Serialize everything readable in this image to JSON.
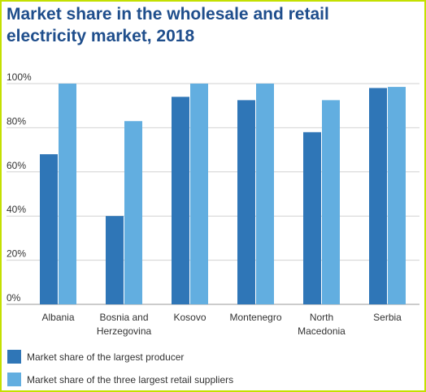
{
  "chart_data": {
    "type": "bar",
    "title": "Market share in the wholesale and retail electricity market, 2018",
    "categories": [
      [
        "Albania"
      ],
      [
        "Bosnia and",
        "Herzegovina"
      ],
      [
        "Kosovo"
      ],
      [
        "Montenegro"
      ],
      [
        "North",
        "Macedonia"
      ],
      [
        "Serbia"
      ]
    ],
    "series": [
      {
        "name": "Market share of the largest producer",
        "color": "#2f76b7",
        "values": [
          68,
          40,
          94,
          92.5,
          78,
          98
        ]
      },
      {
        "name": "Market share of the three largest retail suppliers",
        "color": "#62aee0",
        "values": [
          100,
          83,
          100,
          100,
          92.5,
          98.5
        ]
      }
    ],
    "ylim": [
      0,
      100
    ],
    "yticks": [
      "0%",
      "20%",
      "40%",
      "60%",
      "80%",
      "100%"
    ],
    "grid": true,
    "legend_position": "bottom-left"
  }
}
